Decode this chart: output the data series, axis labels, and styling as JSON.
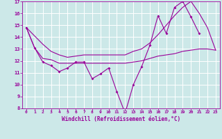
{
  "xlabel": "Windchill (Refroidissement éolien,°C)",
  "x": [
    0,
    1,
    2,
    3,
    4,
    5,
    6,
    7,
    8,
    9,
    10,
    11,
    12,
    13,
    14,
    15,
    16,
    17,
    18,
    19,
    20,
    21,
    22,
    23
  ],
  "line1": [
    14.8,
    13.1,
    11.9,
    11.6,
    11.1,
    11.4,
    11.9,
    11.9,
    10.5,
    10.9,
    11.4,
    9.4,
    7.6,
    10.0,
    11.5,
    13.3,
    15.8,
    14.3,
    16.5,
    17.0,
    15.7,
    14.3,
    null,
    null
  ],
  "line3": [
    14.8,
    13.1,
    12.2,
    12.1,
    11.8,
    11.8,
    11.8,
    11.8,
    11.8,
    11.8,
    11.8,
    11.8,
    11.8,
    11.9,
    12.0,
    12.2,
    12.4,
    12.5,
    12.6,
    12.8,
    12.9,
    13.0,
    13.0,
    12.9
  ],
  "line4": [
    14.8,
    14.1,
    13.4,
    12.8,
    12.5,
    12.3,
    12.4,
    12.5,
    12.5,
    12.5,
    12.5,
    12.5,
    12.5,
    12.8,
    13.0,
    13.5,
    14.2,
    15.0,
    15.8,
    16.5,
    17.0,
    16.0,
    14.8,
    12.9
  ],
  "color": "#990099",
  "bg_color": "#cce8e8",
  "grid_color": "#ffffff",
  "ylim": [
    8,
    17
  ],
  "xlim_min": -0.5,
  "xlim_max": 23.5,
  "yticks": [
    8,
    9,
    10,
    11,
    12,
    13,
    14,
    15,
    16,
    17
  ],
  "xticks": [
    0,
    1,
    2,
    3,
    4,
    5,
    6,
    7,
    8,
    9,
    10,
    11,
    12,
    13,
    14,
    15,
    16,
    17,
    18,
    19,
    20,
    21,
    22,
    23
  ]
}
